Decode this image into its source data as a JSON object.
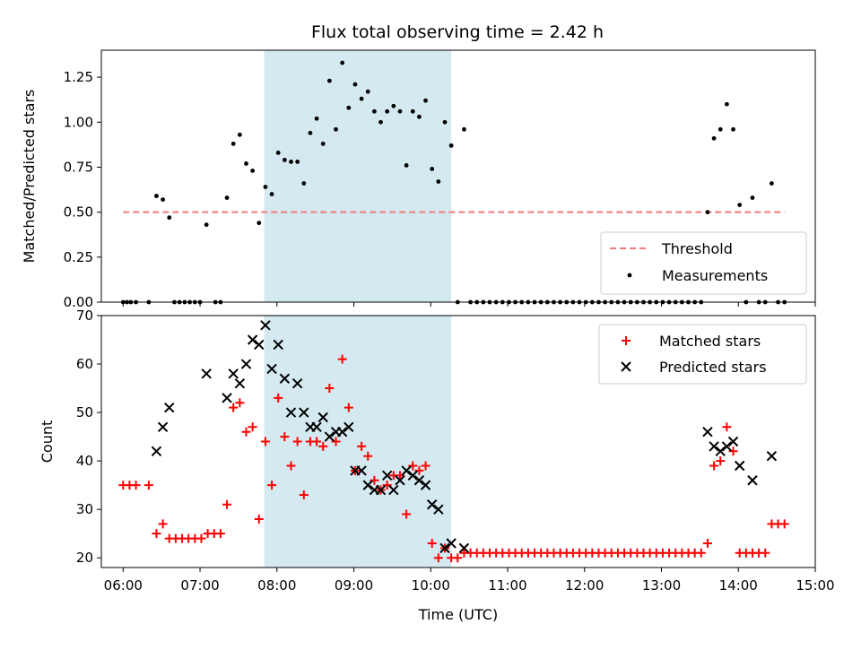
{
  "chart_data": [
    {
      "type": "scatter",
      "title": "Flux total observing time = 2.42 h",
      "xlabel": "",
      "ylabel": "Matched/Predicted stars",
      "xlim": [
        "05:43",
        "15:00"
      ],
      "ylim": [
        0,
        1.4
      ],
      "yticks": [
        "0.00",
        "0.25",
        "0.50",
        "0.75",
        "1.00",
        "1.25"
      ],
      "highlight_span": {
        "start": "07:50",
        "end": "10:16"
      },
      "threshold": {
        "name": "Threshold",
        "value": 0.5,
        "x_start": "06:00",
        "x_end": "14:36"
      },
      "legend": {
        "position": "lower right",
        "entries": [
          "Threshold",
          "Measurements"
        ]
      },
      "series": [
        {
          "name": "Measurements",
          "points": [
            [
              "06:00",
              0
            ],
            [
              "06:03",
              0
            ],
            [
              "06:06",
              0
            ],
            [
              "06:10",
              0
            ],
            [
              "06:20",
              0
            ],
            [
              "06:26",
              0.59
            ],
            [
              "06:31",
              0.57
            ],
            [
              "06:36",
              0.47
            ],
            [
              "06:40",
              0
            ],
            [
              "06:44",
              0
            ],
            [
              "06:48",
              0
            ],
            [
              "06:52",
              0
            ],
            [
              "06:56",
              0
            ],
            [
              "07:00",
              0
            ],
            [
              "07:05",
              0.43
            ],
            [
              "07:12",
              0
            ],
            [
              "07:16",
              0
            ],
            [
              "07:21",
              0.58
            ],
            [
              "07:26",
              0.88
            ],
            [
              "07:31",
              0.93
            ],
            [
              "07:36",
              0.77
            ],
            [
              "07:41",
              0.73
            ],
            [
              "07:46",
              0.44
            ],
            [
              "07:51",
              0.64
            ],
            [
              "07:56",
              0.6
            ],
            [
              "08:01",
              0.83
            ],
            [
              "08:06",
              0.79
            ],
            [
              "08:11",
              0.78
            ],
            [
              "08:16",
              0.78
            ],
            [
              "08:21",
              0.66
            ],
            [
              "08:26",
              0.94
            ],
            [
              "08:31",
              1.02
            ],
            [
              "08:36",
              0.88
            ],
            [
              "08:41",
              1.23
            ],
            [
              "08:46",
              0.96
            ],
            [
              "08:51",
              1.33
            ],
            [
              "08:56",
              1.08
            ],
            [
              "09:01",
              1.21
            ],
            [
              "09:06",
              1.13
            ],
            [
              "09:11",
              1.17
            ],
            [
              "09:16",
              1.06
            ],
            [
              "09:21",
              1.0
            ],
            [
              "09:26",
              1.06
            ],
            [
              "09:31",
              1.09
            ],
            [
              "09:36",
              1.06
            ],
            [
              "09:41",
              0.76
            ],
            [
              "09:46",
              1.06
            ],
            [
              "09:51",
              1.03
            ],
            [
              "09:56",
              1.12
            ],
            [
              "10:01",
              0.74
            ],
            [
              "10:06",
              0.67
            ],
            [
              "10:11",
              1.0
            ],
            [
              "10:16",
              0.87
            ],
            [
              "10:21",
              0
            ],
            [
              "10:26",
              0.96
            ],
            [
              "10:31",
              0
            ],
            [
              "10:36",
              0
            ],
            [
              "10:41",
              0
            ],
            [
              "10:46",
              0
            ],
            [
              "10:51",
              0
            ],
            [
              "10:56",
              0
            ],
            [
              "11:01",
              0
            ],
            [
              "11:06",
              0
            ],
            [
              "11:11",
              0
            ],
            [
              "11:16",
              0
            ],
            [
              "11:21",
              0
            ],
            [
              "11:26",
              0
            ],
            [
              "11:31",
              0
            ],
            [
              "11:36",
              0
            ],
            [
              "11:41",
              0
            ],
            [
              "11:46",
              0
            ],
            [
              "11:51",
              0
            ],
            [
              "11:56",
              0
            ],
            [
              "12:01",
              0
            ],
            [
              "12:06",
              0
            ],
            [
              "12:11",
              0
            ],
            [
              "12:16",
              0
            ],
            [
              "12:21",
              0
            ],
            [
              "12:26",
              0
            ],
            [
              "12:31",
              0
            ],
            [
              "12:36",
              0
            ],
            [
              "12:41",
              0
            ],
            [
              "12:46",
              0
            ],
            [
              "12:51",
              0
            ],
            [
              "12:56",
              0
            ],
            [
              "13:01",
              0
            ],
            [
              "13:06",
              0
            ],
            [
              "13:11",
              0
            ],
            [
              "13:16",
              0
            ],
            [
              "13:21",
              0
            ],
            [
              "13:26",
              0
            ],
            [
              "13:31",
              0
            ],
            [
              "13:36",
              0.5
            ],
            [
              "13:41",
              0.91
            ],
            [
              "13:46",
              0.96
            ],
            [
              "13:51",
              1.1
            ],
            [
              "13:56",
              0.96
            ],
            [
              "14:01",
              0.54
            ],
            [
              "14:06",
              0
            ],
            [
              "14:11",
              0.58
            ],
            [
              "14:16",
              0
            ],
            [
              "14:21",
              0
            ],
            [
              "14:26",
              0.66
            ],
            [
              "14:31",
              0
            ],
            [
              "14:36",
              0
            ]
          ]
        }
      ]
    },
    {
      "type": "scatter",
      "title": "",
      "xlabel": "Time (UTC)",
      "ylabel": "Count",
      "xlim": [
        "05:43",
        "15:00"
      ],
      "ylim": [
        18,
        70
      ],
      "xticks": [
        "06:00",
        "07:00",
        "08:00",
        "09:00",
        "10:00",
        "11:00",
        "12:00",
        "13:00",
        "14:00",
        "15:00"
      ],
      "yticks": [
        "20",
        "30",
        "40",
        "50",
        "60",
        "70"
      ],
      "highlight_span": {
        "start": "07:50",
        "end": "10:16"
      },
      "legend": {
        "position": "upper right",
        "entries": [
          "Matched stars",
          "Predicted stars"
        ]
      },
      "series": [
        {
          "name": "Matched stars",
          "points": [
            [
              "06:00",
              35
            ],
            [
              "06:05",
              35
            ],
            [
              "06:10",
              35
            ],
            [
              "06:20",
              35
            ],
            [
              "06:26",
              25
            ],
            [
              "06:31",
              27
            ],
            [
              "06:36",
              24
            ],
            [
              "06:41",
              24
            ],
            [
              "06:46",
              24
            ],
            [
              "06:51",
              24
            ],
            [
              "06:56",
              24
            ],
            [
              "07:01",
              24
            ],
            [
              "07:06",
              25
            ],
            [
              "07:11",
              25
            ],
            [
              "07:16",
              25
            ],
            [
              "07:21",
              31
            ],
            [
              "07:26",
              51
            ],
            [
              "07:31",
              52
            ],
            [
              "07:36",
              46
            ],
            [
              "07:41",
              47
            ],
            [
              "07:46",
              28
            ],
            [
              "07:51",
              44
            ],
            [
              "07:56",
              35
            ],
            [
              "08:01",
              53
            ],
            [
              "08:06",
              45
            ],
            [
              "08:11",
              39
            ],
            [
              "08:16",
              44
            ],
            [
              "08:21",
              33
            ],
            [
              "08:26",
              44
            ],
            [
              "08:31",
              44
            ],
            [
              "08:36",
              43
            ],
            [
              "08:41",
              55
            ],
            [
              "08:46",
              44
            ],
            [
              "08:51",
              61
            ],
            [
              "08:56",
              51
            ],
            [
              "09:01",
              38
            ],
            [
              "09:06",
              43
            ],
            [
              "09:11",
              41
            ],
            [
              "09:16",
              36
            ],
            [
              "09:21",
              34
            ],
            [
              "09:26",
              35
            ],
            [
              "09:31",
              37
            ],
            [
              "09:36",
              37
            ],
            [
              "09:41",
              29
            ],
            [
              "09:46",
              39
            ],
            [
              "09:51",
              38
            ],
            [
              "09:56",
              39
            ],
            [
              "10:01",
              23
            ],
            [
              "10:06",
              20
            ],
            [
              "10:11",
              22
            ],
            [
              "10:16",
              20
            ],
            [
              "10:21",
              20
            ],
            [
              "10:26",
              21
            ],
            [
              "10:31",
              21
            ],
            [
              "10:36",
              21
            ],
            [
              "10:41",
              21
            ],
            [
              "10:46",
              21
            ],
            [
              "10:51",
              21
            ],
            [
              "10:56",
              21
            ],
            [
              "11:01",
              21
            ],
            [
              "11:06",
              21
            ],
            [
              "11:11",
              21
            ],
            [
              "11:16",
              21
            ],
            [
              "11:21",
              21
            ],
            [
              "11:26",
              21
            ],
            [
              "11:31",
              21
            ],
            [
              "11:36",
              21
            ],
            [
              "11:41",
              21
            ],
            [
              "11:46",
              21
            ],
            [
              "11:51",
              21
            ],
            [
              "11:56",
              21
            ],
            [
              "12:01",
              21
            ],
            [
              "12:06",
              21
            ],
            [
              "12:11",
              21
            ],
            [
              "12:16",
              21
            ],
            [
              "12:21",
              21
            ],
            [
              "12:26",
              21
            ],
            [
              "12:31",
              21
            ],
            [
              "12:36",
              21
            ],
            [
              "12:41",
              21
            ],
            [
              "12:46",
              21
            ],
            [
              "12:51",
              21
            ],
            [
              "12:56",
              21
            ],
            [
              "13:01",
              21
            ],
            [
              "13:06",
              21
            ],
            [
              "13:11",
              21
            ],
            [
              "13:16",
              21
            ],
            [
              "13:21",
              21
            ],
            [
              "13:26",
              21
            ],
            [
              "13:31",
              21
            ],
            [
              "13:36",
              23
            ],
            [
              "13:41",
              39
            ],
            [
              "13:46",
              40
            ],
            [
              "13:51",
              47
            ],
            [
              "13:56",
              42
            ],
            [
              "14:01",
              21
            ],
            [
              "14:06",
              21
            ],
            [
              "14:11",
              21
            ],
            [
              "14:16",
              21
            ],
            [
              "14:21",
              21
            ],
            [
              "14:26",
              27
            ],
            [
              "14:31",
              27
            ],
            [
              "14:36",
              27
            ]
          ]
        },
        {
          "name": "Predicted stars",
          "points": [
            [
              "06:26",
              42
            ],
            [
              "06:31",
              47
            ],
            [
              "06:36",
              51
            ],
            [
              "07:05",
              58
            ],
            [
              "07:21",
              53
            ],
            [
              "07:26",
              58
            ],
            [
              "07:31",
              56
            ],
            [
              "07:36",
              60
            ],
            [
              "07:41",
              65
            ],
            [
              "07:46",
              64
            ],
            [
              "07:51",
              68
            ],
            [
              "07:56",
              59
            ],
            [
              "08:01",
              64
            ],
            [
              "08:06",
              57
            ],
            [
              "08:11",
              50
            ],
            [
              "08:16",
              56
            ],
            [
              "08:21",
              50
            ],
            [
              "08:26",
              47
            ],
            [
              "08:31",
              47
            ],
            [
              "08:36",
              49
            ],
            [
              "08:41",
              45
            ],
            [
              "08:46",
              46
            ],
            [
              "08:51",
              46
            ],
            [
              "08:56",
              47
            ],
            [
              "09:01",
              38
            ],
            [
              "09:06",
              38
            ],
            [
              "09:11",
              35
            ],
            [
              "09:16",
              34
            ],
            [
              "09:21",
              34
            ],
            [
              "09:26",
              37
            ],
            [
              "09:31",
              34
            ],
            [
              "09:36",
              36
            ],
            [
              "09:41",
              38
            ],
            [
              "09:46",
              37
            ],
            [
              "09:51",
              36
            ],
            [
              "09:56",
              35
            ],
            [
              "10:01",
              31
            ],
            [
              "10:06",
              30
            ],
            [
              "10:11",
              22
            ],
            [
              "10:16",
              23
            ],
            [
              "10:26",
              22
            ],
            [
              "13:36",
              46
            ],
            [
              "13:41",
              43
            ],
            [
              "13:46",
              42
            ],
            [
              "13:51",
              43
            ],
            [
              "13:56",
              44
            ],
            [
              "14:01",
              39
            ],
            [
              "14:11",
              36
            ],
            [
              "14:26",
              41
            ]
          ]
        }
      ]
    }
  ],
  "colors": {
    "span": "#d4eaf0",
    "threshold": "#f07a7a",
    "measurement": "#000000",
    "matched": "#ff0000",
    "predicted": "#000000"
  }
}
